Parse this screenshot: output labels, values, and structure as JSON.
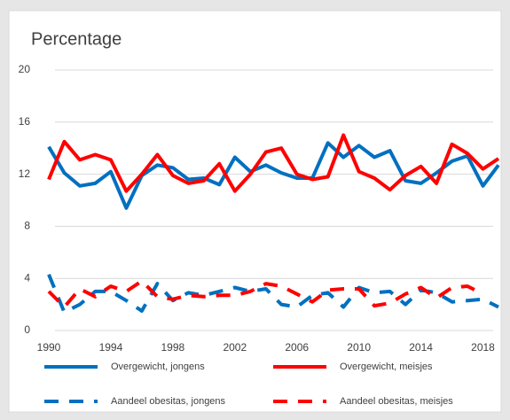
{
  "chart_data": {
    "type": "line",
    "title": "Percentage",
    "x": [
      1990,
      1991,
      1992,
      1993,
      1994,
      1995,
      1996,
      1997,
      1998,
      1999,
      2000,
      2001,
      2002,
      2003,
      2004,
      2005,
      2006,
      2007,
      2008,
      2009,
      2010,
      2011,
      2012,
      2013,
      2014,
      2015,
      2016,
      2017,
      2018,
      2019
    ],
    "xlim": [
      1990,
      2019
    ],
    "xticks": [
      1990,
      1994,
      1998,
      2002,
      2006,
      2010,
      2014,
      2018
    ],
    "ylim": [
      0,
      20
    ],
    "yticks": [
      0,
      4,
      8,
      12,
      16,
      20
    ],
    "grid": true,
    "legend": "bottom",
    "series": [
      {
        "name": "Overgewicht, jongens",
        "color": "#0070c0",
        "dash": "solid",
        "values": [
          14.1,
          12.1,
          11.1,
          11.3,
          12.2,
          9.4,
          11.9,
          12.7,
          12.5,
          11.6,
          11.7,
          11.2,
          13.3,
          12.2,
          12.7,
          12.1,
          11.7,
          11.7,
          14.4,
          13.3,
          14.2,
          13.3,
          13.8,
          11.5,
          11.3,
          12.1,
          13.0,
          13.4,
          11.1,
          12.7
        ]
      },
      {
        "name": "Overgewicht, meisjes",
        "color": "#ff0000",
        "dash": "solid",
        "values": [
          11.6,
          14.5,
          13.1,
          13.5,
          13.1,
          10.7,
          12.0,
          13.5,
          11.9,
          11.3,
          11.5,
          12.8,
          10.7,
          12.0,
          13.7,
          14.0,
          12.0,
          11.6,
          11.8,
          15.0,
          12.2,
          11.7,
          10.8,
          11.9,
          12.6,
          11.3,
          14.3,
          13.6,
          12.4,
          13.2
        ]
      },
      {
        "name": "Aandeel obesitas, jongens",
        "color": "#0070c0",
        "dash": "dashed",
        "values": [
          4.3,
          1.4,
          2.0,
          3.0,
          3.0,
          2.3,
          1.5,
          3.6,
          2.3,
          2.9,
          2.7,
          3.0,
          3.3,
          3.0,
          3.2,
          2.0,
          1.8,
          2.7,
          2.9,
          1.8,
          3.3,
          2.9,
          3.0,
          2.0,
          3.1,
          2.9,
          2.2,
          2.3,
          2.4,
          1.8
        ]
      },
      {
        "name": "Aandeel obesitas, meisjes",
        "color": "#ff0000",
        "dash": "dashed",
        "values": [
          3.0,
          1.8,
          3.2,
          2.6,
          3.4,
          3.0,
          3.8,
          2.6,
          2.4,
          2.7,
          2.6,
          2.7,
          2.7,
          3.0,
          3.6,
          3.4,
          2.8,
          2.2,
          3.1,
          3.2,
          3.2,
          1.9,
          2.1,
          2.8,
          3.3,
          2.5,
          3.3,
          3.4,
          2.8,
          null
        ]
      }
    ]
  }
}
